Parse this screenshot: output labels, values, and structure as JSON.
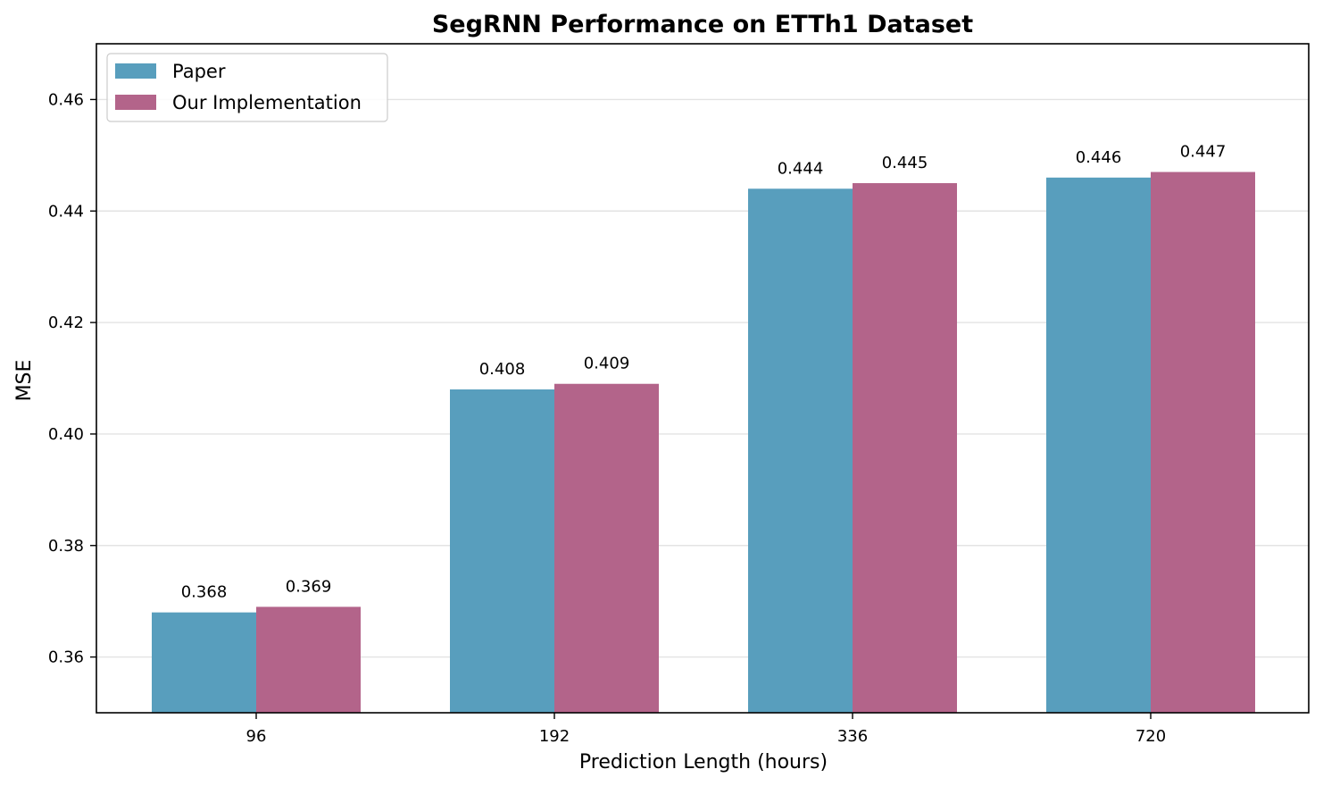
{
  "chart_data": {
    "type": "bar",
    "title": "SegRNN Performance on ETTh1 Dataset",
    "xlabel": "Prediction Length (hours)",
    "ylabel": "MSE",
    "categories": [
      "96",
      "192",
      "336",
      "720"
    ],
    "series": [
      {
        "name": "Paper",
        "color": "#589EBD",
        "values": [
          0.368,
          0.408,
          0.444,
          0.446
        ],
        "labels": [
          "0.368",
          "0.408",
          "0.444",
          "0.446"
        ]
      },
      {
        "name": "Our Implementation",
        "color": "#B3648A",
        "values": [
          0.369,
          0.409,
          0.445,
          0.447
        ],
        "labels": [
          "0.369",
          "0.409",
          "0.445",
          "0.447"
        ]
      }
    ],
    "ylim": [
      0.35,
      0.47
    ],
    "yticks": [
      0.36,
      0.38,
      0.4,
      0.42,
      0.44,
      0.46
    ],
    "ytick_labels": [
      "0.36",
      "0.38",
      "0.40",
      "0.42",
      "0.44",
      "0.46"
    ],
    "grid": "horizontal",
    "legend_position": "top-left"
  }
}
